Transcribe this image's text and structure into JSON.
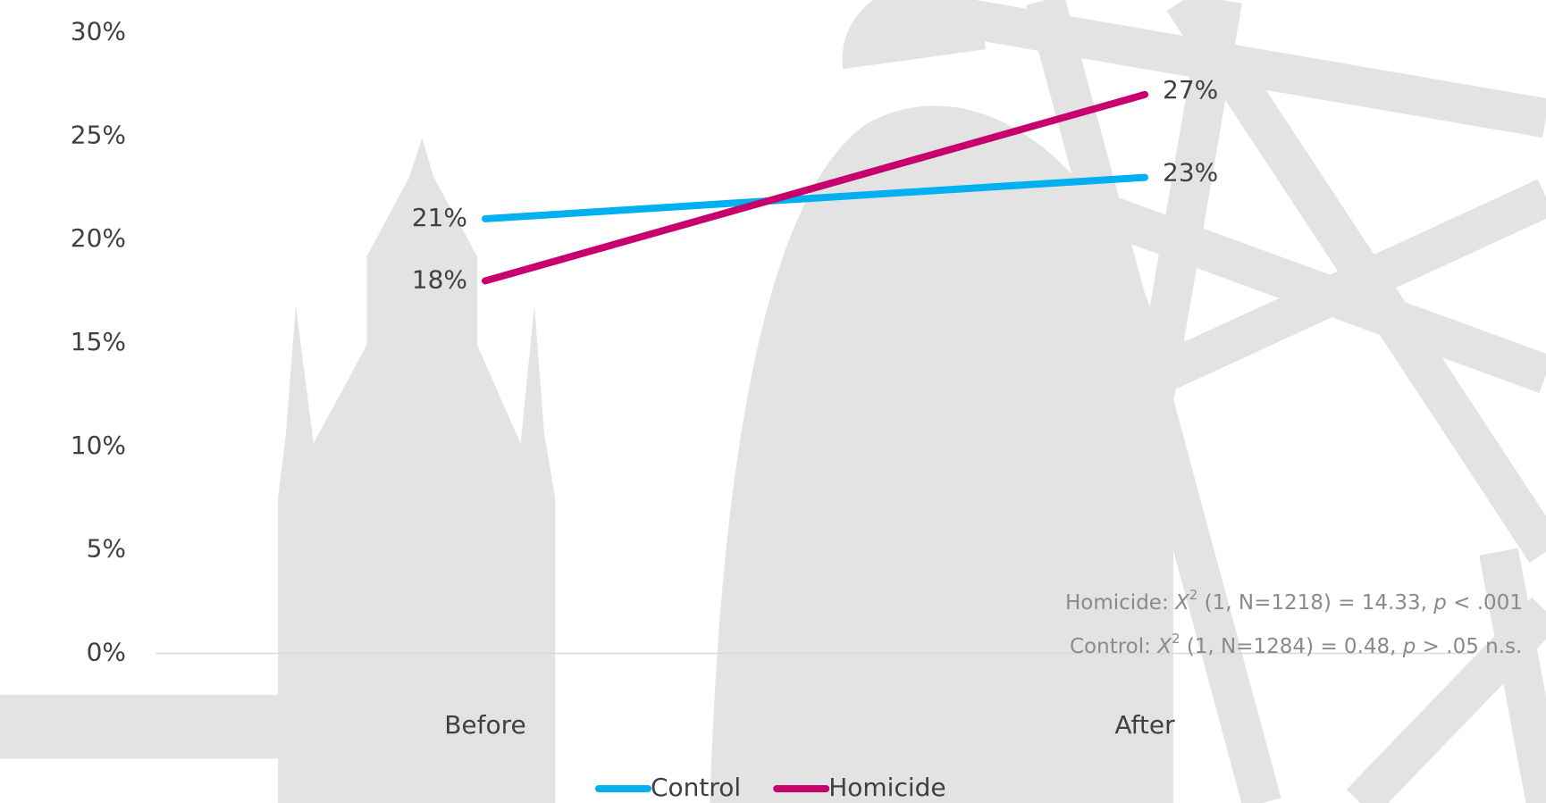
{
  "chart_data": {
    "type": "line",
    "categories": [
      "Before",
      "After"
    ],
    "series": [
      {
        "name": "Control",
        "color": "#00b0f0",
        "values": [
          21,
          23
        ],
        "value_labels": [
          "21%",
          "23%"
        ]
      },
      {
        "name": "Homicide",
        "color": "#c8006e",
        "values": [
          18,
          27
        ],
        "value_labels": [
          "18%",
          "27%"
        ]
      }
    ],
    "ylim": [
      0,
      30
    ],
    "yticks": [
      {
        "value": 0,
        "label": "0%"
      },
      {
        "value": 5,
        "label": "5%"
      },
      {
        "value": 10,
        "label": "10%"
      },
      {
        "value": 15,
        "label": "15%"
      },
      {
        "value": 20,
        "label": "20%"
      },
      {
        "value": 25,
        "label": "25%"
      },
      {
        "value": 30,
        "label": "30%"
      }
    ],
    "grid": false,
    "legend": "bottom",
    "annotations": [
      [
        "Homicide: ",
        "X",
        "2",
        " (1, N=1218) = 14.33, ",
        "p",
        " < .001"
      ],
      [
        "Control: ",
        "X",
        "2",
        " (1, N=1284) = 0.48, ",
        "p",
        " > .05 n.s."
      ]
    ]
  }
}
